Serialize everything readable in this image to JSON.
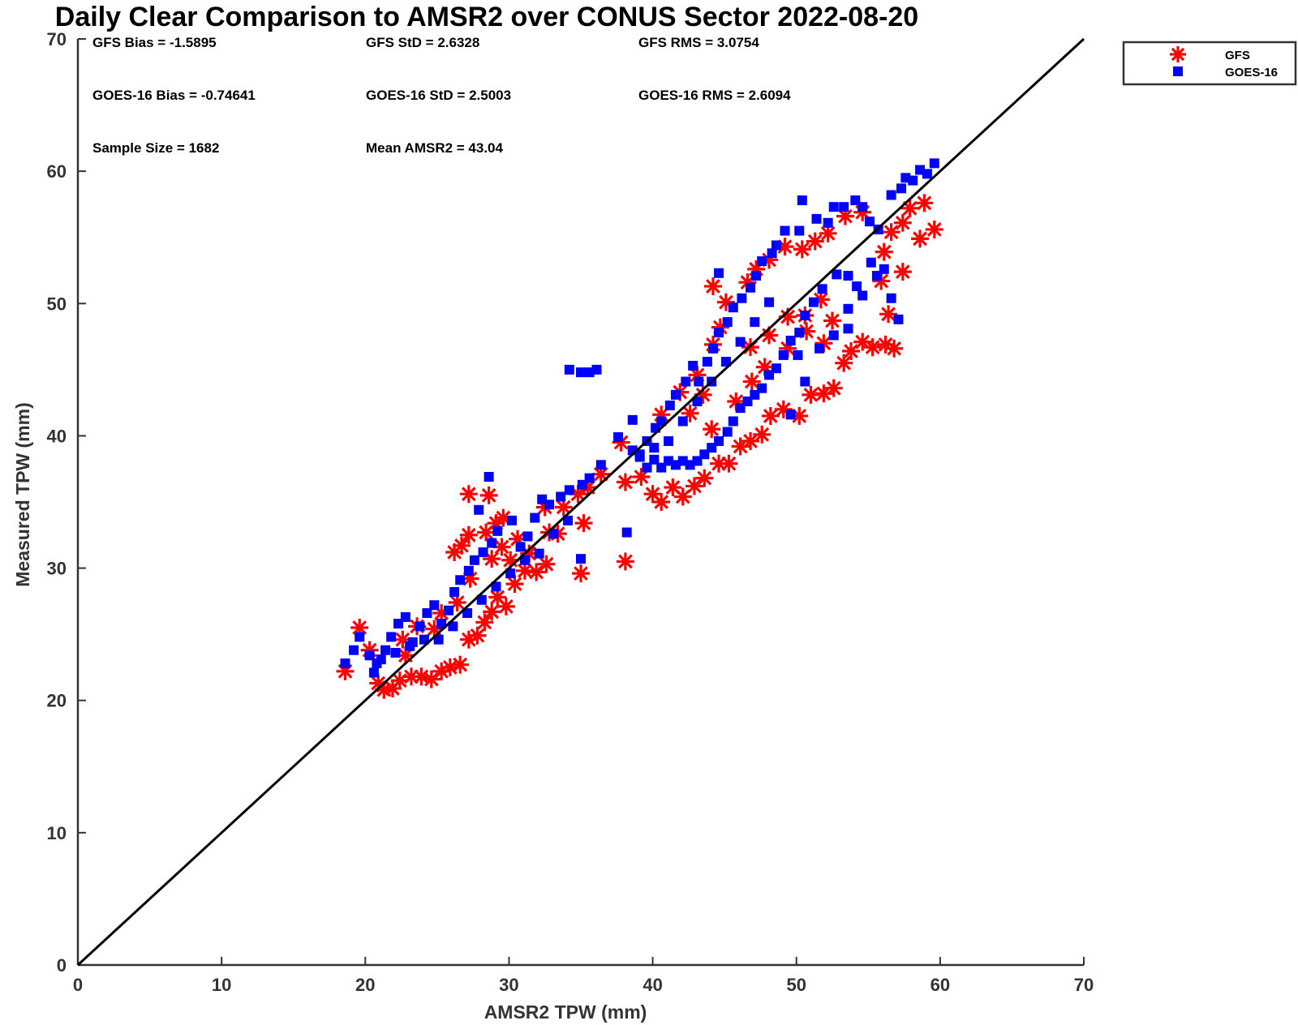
{
  "chart_data": {
    "type": "scatter",
    "title": "Daily Clear Comparison to AMSR2 over CONUS Sector 2022-08-20",
    "xlabel": "AMSR2 TPW (mm)",
    "ylabel": "Measured TPW (mm)",
    "xlim": [
      0,
      70
    ],
    "ylim": [
      0,
      70
    ],
    "xticks": [
      "0",
      "10",
      "20",
      "30",
      "40",
      "50",
      "60",
      "70"
    ],
    "yticks": [
      "0",
      "10",
      "20",
      "30",
      "40",
      "50",
      "60",
      "70"
    ],
    "grid": false,
    "legend_position": "outside-top-right",
    "reference_line": {
      "from": [
        0,
        0
      ],
      "to": [
        70,
        70
      ]
    },
    "annotations": [
      "GFS Bias = -1.5895",
      "GFS StD = 2.6328",
      "GFS RMS = 3.0754",
      "GOES-16 Bias = -0.74641",
      "GOES-16 StD = 2.5003",
      "GOES-16 RMS = 2.6094",
      "Sample Size = 1682",
      "Mean AMSR2 = 43.04"
    ],
    "series": [
      {
        "name": "GFS",
        "marker": "asterisk",
        "color": "#ff0000",
        "points": [
          [
            18.6,
            22.2
          ],
          [
            19.6,
            25.5
          ],
          [
            20.3,
            23.8
          ],
          [
            20.9,
            21.3
          ],
          [
            21.3,
            20.8
          ],
          [
            21.9,
            20.9
          ],
          [
            22.4,
            21.5
          ],
          [
            22.8,
            23.4
          ],
          [
            23.2,
            21.8
          ],
          [
            23.9,
            21.8
          ],
          [
            24.6,
            21.6
          ],
          [
            25.3,
            22.2
          ],
          [
            25.9,
            22.5
          ],
          [
            26.6,
            22.7
          ],
          [
            27.2,
            24.6
          ],
          [
            27.8,
            24.9
          ],
          [
            28.3,
            25.9
          ],
          [
            28.8,
            26.7
          ],
          [
            29.2,
            27.8
          ],
          [
            29.8,
            27.1
          ],
          [
            26.2,
            31.2
          ],
          [
            26.7,
            31.7
          ],
          [
            27.2,
            32.5
          ],
          [
            27.2,
            35.6
          ],
          [
            28.6,
            35.5
          ],
          [
            28.4,
            32.7
          ],
          [
            29.1,
            33.4
          ],
          [
            29.6,
            33.8
          ],
          [
            30.1,
            30.6
          ],
          [
            30.4,
            28.8
          ],
          [
            31.1,
            29.8
          ],
          [
            31.9,
            29.7
          ],
          [
            32.6,
            30.3
          ],
          [
            32.8,
            32.7
          ],
          [
            33.4,
            32.6
          ],
          [
            32.5,
            34.6
          ],
          [
            33.8,
            34.6
          ],
          [
            34.8,
            35.6
          ],
          [
            35.2,
            33.4
          ],
          [
            35.0,
            29.6
          ],
          [
            35.5,
            36.1
          ],
          [
            36.4,
            37.1
          ],
          [
            37.8,
            39.5
          ],
          [
            38.1,
            36.5
          ],
          [
            38.1,
            30.5
          ],
          [
            39.2,
            36.9
          ],
          [
            40.0,
            35.6
          ],
          [
            40.6,
            35.0
          ],
          [
            41.4,
            36.1
          ],
          [
            42.1,
            35.4
          ],
          [
            42.9,
            36.2
          ],
          [
            43.6,
            36.8
          ],
          [
            44.6,
            37.9
          ],
          [
            45.3,
            37.9
          ],
          [
            46.1,
            39.2
          ],
          [
            46.8,
            39.6
          ],
          [
            47.6,
            40.1
          ],
          [
            48.2,
            41.5
          ],
          [
            49.1,
            42.0
          ],
          [
            50.2,
            41.5
          ],
          [
            51.0,
            43.1
          ],
          [
            51.9,
            43.2
          ],
          [
            52.6,
            43.6
          ],
          [
            53.3,
            45.5
          ],
          [
            53.8,
            46.4
          ],
          [
            54.6,
            47.1
          ],
          [
            55.3,
            46.7
          ],
          [
            56.2,
            46.9
          ],
          [
            56.8,
            46.6
          ],
          [
            56.4,
            49.2
          ],
          [
            55.9,
            51.7
          ],
          [
            57.4,
            52.4
          ],
          [
            56.1,
            53.9
          ],
          [
            56.6,
            55.4
          ],
          [
            57.4,
            56.1
          ],
          [
            57.9,
            57.2
          ],
          [
            58.6,
            54.9
          ],
          [
            59.6,
            55.6
          ],
          [
            58.9,
            57.6
          ],
          [
            40.6,
            41.6
          ],
          [
            41.9,
            43.3
          ],
          [
            43.1,
            44.6
          ],
          [
            44.2,
            46.9
          ],
          [
            44.7,
            48.2
          ],
          [
            45.1,
            50.1
          ],
          [
            44.2,
            51.3
          ],
          [
            46.6,
            51.6
          ],
          [
            47.2,
            52.6
          ],
          [
            48.1,
            53.3
          ],
          [
            49.2,
            54.3
          ],
          [
            50.4,
            54.1
          ],
          [
            51.3,
            54.7
          ],
          [
            52.2,
            55.3
          ],
          [
            53.4,
            56.6
          ],
          [
            54.6,
            56.9
          ],
          [
            46.8,
            46.7
          ],
          [
            48.1,
            47.6
          ],
          [
            49.4,
            49.0
          ],
          [
            50.6,
            49.1
          ],
          [
            51.7,
            50.3
          ],
          [
            43.5,
            43.1
          ],
          [
            42.6,
            41.7
          ],
          [
            44.1,
            40.5
          ],
          [
            45.8,
            42.6
          ],
          [
            46.9,
            44.1
          ],
          [
            47.8,
            45.2
          ],
          [
            49.4,
            46.6
          ],
          [
            50.7,
            47.9
          ],
          [
            51.9,
            47.0
          ],
          [
            52.5,
            48.7
          ],
          [
            22.6,
            24.6
          ],
          [
            23.6,
            25.6
          ],
          [
            24.8,
            25.4
          ],
          [
            25.3,
            26.6
          ],
          [
            26.4,
            27.4
          ],
          [
            27.3,
            29.2
          ],
          [
            28.8,
            30.7
          ],
          [
            29.5,
            31.6
          ],
          [
            30.6,
            32.2
          ],
          [
            31.4,
            31.1
          ]
        ]
      },
      {
        "name": "GOES-16",
        "marker": "square",
        "color": "#0000ff",
        "points": [
          [
            18.6,
            22.8
          ],
          [
            19.2,
            23.8
          ],
          [
            19.6,
            24.8
          ],
          [
            20.3,
            23.4
          ],
          [
            20.8,
            22.8
          ],
          [
            21.4,
            23.8
          ],
          [
            21.8,
            24.8
          ],
          [
            22.3,
            25.8
          ],
          [
            22.8,
            26.3
          ],
          [
            23.3,
            24.4
          ],
          [
            23.8,
            25.6
          ],
          [
            24.3,
            26.6
          ],
          [
            24.8,
            27.2
          ],
          [
            25.3,
            25.8
          ],
          [
            25.8,
            26.8
          ],
          [
            26.2,
            28.2
          ],
          [
            26.6,
            29.1
          ],
          [
            27.2,
            29.8
          ],
          [
            27.6,
            30.6
          ],
          [
            28.2,
            31.2
          ],
          [
            28.8,
            31.9
          ],
          [
            29.2,
            32.8
          ],
          [
            28.6,
            36.9
          ],
          [
            27.9,
            34.4
          ],
          [
            30.2,
            33.6
          ],
          [
            30.8,
            31.6
          ],
          [
            31.3,
            32.4
          ],
          [
            31.8,
            33.8
          ],
          [
            32.3,
            35.2
          ],
          [
            32.8,
            34.8
          ],
          [
            33.6,
            35.4
          ],
          [
            34.2,
            35.9
          ],
          [
            35.1,
            36.3
          ],
          [
            35.6,
            36.8
          ],
          [
            36.4,
            37.8
          ],
          [
            34.2,
            45.0
          ],
          [
            35.0,
            44.8
          ],
          [
            35.6,
            44.8
          ],
          [
            36.1,
            45.0
          ],
          [
            38.2,
            32.7
          ],
          [
            35.0,
            30.7
          ],
          [
            37.6,
            39.9
          ],
          [
            38.6,
            41.2
          ],
          [
            39.1,
            38.6
          ],
          [
            39.6,
            39.6
          ],
          [
            40.2,
            40.6
          ],
          [
            40.6,
            41.1
          ],
          [
            41.2,
            42.3
          ],
          [
            41.6,
            43.1
          ],
          [
            42.3,
            44.1
          ],
          [
            42.8,
            45.3
          ],
          [
            43.2,
            44.1
          ],
          [
            43.8,
            45.6
          ],
          [
            44.2,
            46.6
          ],
          [
            44.6,
            47.8
          ],
          [
            45.2,
            48.6
          ],
          [
            45.6,
            49.7
          ],
          [
            44.6,
            52.3
          ],
          [
            46.2,
            50.4
          ],
          [
            46.8,
            51.2
          ],
          [
            47.2,
            52.1
          ],
          [
            47.6,
            53.2
          ],
          [
            48.3,
            53.8
          ],
          [
            48.6,
            54.4
          ],
          [
            49.2,
            55.5
          ],
          [
            50.2,
            55.5
          ],
          [
            50.4,
            57.8
          ],
          [
            51.4,
            56.4
          ],
          [
            52.2,
            56.1
          ],
          [
            52.6,
            57.3
          ],
          [
            53.3,
            57.3
          ],
          [
            54.1,
            57.8
          ],
          [
            54.6,
            57.3
          ],
          [
            55.1,
            56.2
          ],
          [
            55.7,
            55.6
          ],
          [
            56.6,
            58.2
          ],
          [
            57.3,
            58.7
          ],
          [
            57.6,
            59.5
          ],
          [
            58.1,
            59.3
          ],
          [
            58.6,
            60.1
          ],
          [
            59.1,
            59.8
          ],
          [
            59.6,
            60.6
          ],
          [
            56.1,
            52.6
          ],
          [
            56.6,
            50.4
          ],
          [
            57.1,
            48.8
          ],
          [
            53.6,
            52.1
          ],
          [
            54.2,
            51.3
          ],
          [
            55.2,
            53.1
          ],
          [
            52.8,
            52.2
          ],
          [
            51.8,
            51.1
          ],
          [
            51.2,
            50.1
          ],
          [
            50.6,
            49.1
          ],
          [
            50.2,
            47.8
          ],
          [
            49.6,
            47.2
          ],
          [
            49.1,
            46.1
          ],
          [
            48.6,
            45.1
          ],
          [
            48.1,
            44.6
          ],
          [
            47.6,
            43.6
          ],
          [
            47.1,
            43.1
          ],
          [
            46.6,
            42.6
          ],
          [
            46.1,
            42.1
          ],
          [
            45.6,
            41.1
          ],
          [
            45.2,
            40.3
          ],
          [
            44.6,
            39.6
          ],
          [
            44.1,
            39.1
          ],
          [
            43.6,
            38.6
          ],
          [
            43.1,
            38.1
          ],
          [
            42.6,
            37.8
          ],
          [
            42.1,
            38.1
          ],
          [
            41.6,
            37.8
          ],
          [
            41.1,
            38.1
          ],
          [
            40.6,
            37.6
          ],
          [
            40.1,
            38.2
          ],
          [
            39.6,
            37.6
          ],
          [
            39.1,
            38.4
          ],
          [
            38.6,
            38.9
          ],
          [
            50.1,
            46.1
          ],
          [
            50.6,
            44.1
          ],
          [
            49.6,
            41.6
          ],
          [
            53.6,
            49.6
          ],
          [
            54.6,
            50.6
          ],
          [
            55.6,
            52.1
          ],
          [
            52.6,
            47.6
          ],
          [
            51.6,
            46.6
          ],
          [
            53.6,
            48.1
          ],
          [
            48.1,
            50.1
          ],
          [
            47.1,
            48.6
          ],
          [
            46.1,
            47.1
          ],
          [
            45.1,
            45.6
          ],
          [
            44.1,
            44.1
          ],
          [
            43.1,
            42.6
          ],
          [
            42.1,
            41.1
          ],
          [
            41.1,
            39.6
          ],
          [
            40.1,
            39.1
          ],
          [
            20.6,
            22.1
          ],
          [
            21.1,
            23.1
          ],
          [
            22.1,
            23.6
          ],
          [
            23.1,
            24.1
          ],
          [
            24.1,
            24.6
          ],
          [
            25.1,
            24.6
          ],
          [
            26.1,
            25.6
          ],
          [
            27.1,
            26.6
          ],
          [
            28.1,
            27.6
          ],
          [
            29.1,
            28.6
          ],
          [
            30.1,
            29.6
          ],
          [
            31.1,
            30.6
          ],
          [
            32.1,
            31.1
          ],
          [
            33.1,
            32.6
          ],
          [
            34.1,
            33.6
          ]
        ]
      }
    ]
  }
}
